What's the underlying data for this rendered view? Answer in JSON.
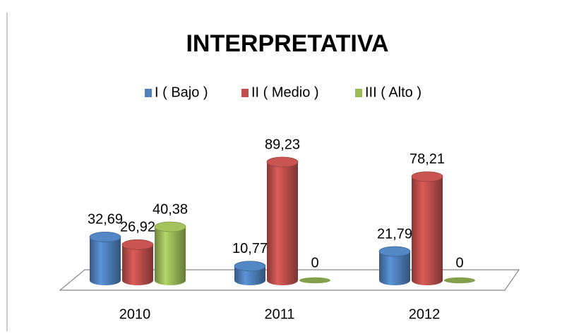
{
  "chart_data": {
    "type": "bar3d",
    "title": "INTERPRETATIVA",
    "categories": [
      "2010",
      "2011",
      "2012"
    ],
    "series": [
      {
        "name": "I ( Bajo )",
        "color": "#4f81bd",
        "values": [
          32.69,
          10.77,
          21.79
        ],
        "value_labels": [
          "32,69",
          "10,77",
          "21,79"
        ]
      },
      {
        "name": "II ( Medio )",
        "color": "#c0504d",
        "values": [
          26.92,
          89.23,
          78.21
        ],
        "value_labels": [
          "26,92",
          "89,23",
          "78,21"
        ]
      },
      {
        "name": "III ( Alto )",
        "color": "#9bbb59",
        "values": [
          40.38,
          0,
          0
        ],
        "value_labels": [
          "40,38",
          "0",
          "0"
        ]
      }
    ],
    "legend": "top"
  }
}
